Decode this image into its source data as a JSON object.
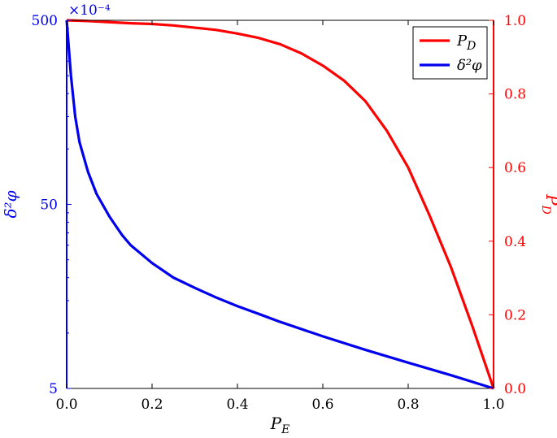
{
  "chart_data": {
    "type": "line",
    "xlabel": "P_E",
    "ylabel_left": "δ²φ",
    "ylabel_right": "P_D",
    "left_axis_multiplier": "×10⁻⁴",
    "xlim": [
      0,
      1
    ],
    "ylim_left": [
      5,
      500
    ],
    "ylim_left_scale": "log",
    "ylim_right": [
      0,
      1
    ],
    "xticks": [
      "0.0",
      "0.2",
      "0.4",
      "0.6",
      "0.8",
      "1.0"
    ],
    "yticks_left": [
      "5",
      "50",
      "500"
    ],
    "yticks_right": [
      "0.0",
      "0.2",
      "0.4",
      "0.6",
      "0.8",
      "1.0"
    ],
    "legend_position": "top-right",
    "colors": {
      "pd": "#ff0000",
      "phi": "#0000ee",
      "axes": "#000000"
    },
    "series": [
      {
        "name": "P_D",
        "axis": "right",
        "color": "#ff0000",
        "x": [
          0.0,
          0.05,
          0.1,
          0.15,
          0.2,
          0.25,
          0.3,
          0.35,
          0.4,
          0.45,
          0.5,
          0.55,
          0.6,
          0.65,
          0.7,
          0.75,
          0.8,
          0.85,
          0.9,
          0.95,
          1.0
        ],
        "y": [
          1.0,
          0.998,
          0.995,
          0.992,
          0.99,
          0.986,
          0.98,
          0.974,
          0.964,
          0.952,
          0.935,
          0.91,
          0.877,
          0.836,
          0.78,
          0.7,
          0.6,
          0.47,
          0.33,
          0.17,
          0.0
        ]
      },
      {
        "name": "δ²φ",
        "axis": "left",
        "color": "#0000ee",
        "x": [
          0.0,
          0.01,
          0.02,
          0.03,
          0.05,
          0.07,
          0.1,
          0.13,
          0.15,
          0.2,
          0.25,
          0.3,
          0.35,
          0.4,
          0.45,
          0.5,
          0.6,
          0.7,
          0.8,
          0.9,
          1.0
        ],
        "y": [
          500,
          250,
          150,
          109,
          75,
          57,
          43,
          34,
          30,
          24,
          20,
          17.6,
          15.6,
          14,
          12.7,
          11.5,
          9.6,
          8.1,
          6.9,
          5.9,
          5
        ]
      }
    ]
  },
  "legend": {
    "items": [
      {
        "label": "P_D",
        "color": "#ff0000"
      },
      {
        "label": "δ²φ",
        "color": "#0000ee"
      }
    ]
  }
}
